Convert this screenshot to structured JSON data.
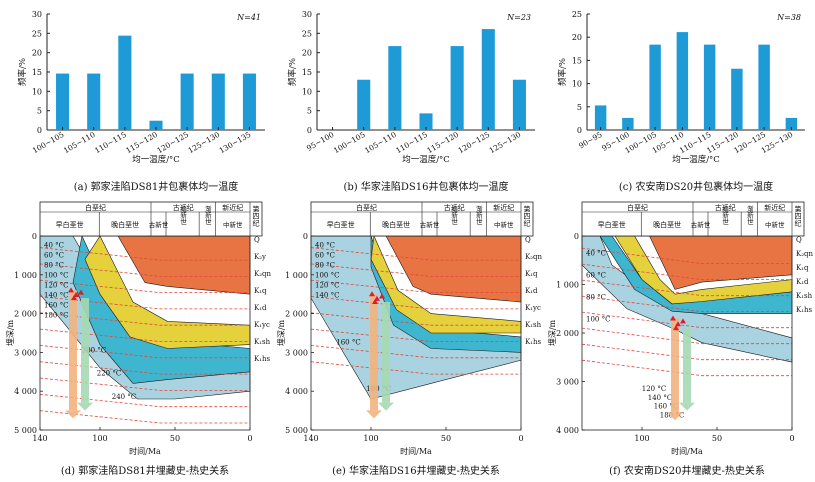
{
  "chart_data": [
    {
      "type": "bar",
      "id": "a",
      "title": "(a) 郭家洼陷DS81井包裹体均一温度",
      "xlabel": "均一温度/°C",
      "ylabel": "频率/%",
      "n_label": "N=41",
      "categories": [
        "100~105",
        "105~110",
        "110~115",
        "115~120",
        "120~125",
        "125~130",
        "130~135"
      ],
      "values": [
        14.6,
        14.6,
        24.4,
        2.4,
        14.6,
        14.6,
        14.6
      ],
      "yticks": [
        0,
        5,
        10,
        15,
        20,
        25,
        30
      ],
      "ylim": [
        0,
        30
      ],
      "color": "#1e9bd7"
    },
    {
      "type": "bar",
      "id": "b",
      "title": "(b) 华家洼陷DS16井包裹体均一温度",
      "xlabel": "均一温度/°C",
      "ylabel": "频率/%",
      "n_label": "N=23",
      "categories": [
        "95~100",
        "100~105",
        "105~110",
        "110~115",
        "115~120",
        "120~125",
        "125~130"
      ],
      "values": [
        0,
        13.0,
        21.7,
        4.3,
        21.7,
        26.1,
        13.0
      ],
      "yticks": [
        0,
        5,
        10,
        15,
        20,
        25,
        30
      ],
      "ylim": [
        0,
        30
      ],
      "color": "#1e9bd7"
    },
    {
      "type": "bar",
      "id": "c",
      "title": "(c) 农安南DS20井包裹体均一温度",
      "xlabel": "均一温度/°C",
      "ylabel": "频率/%",
      "n_label": "N=38",
      "categories": [
        "90~95",
        "95~100",
        "100~105",
        "105~110",
        "110~115",
        "115~120",
        "120~125",
        "125~130"
      ],
      "values": [
        5.3,
        2.6,
        18.4,
        21.1,
        18.4,
        13.2,
        18.4,
        2.6
      ],
      "yticks": [
        0,
        5,
        10,
        15,
        20,
        25
      ],
      "ylim": [
        0,
        25
      ],
      "color": "#1e9bd7"
    },
    {
      "type": "area",
      "id": "d",
      "title": "(d) 郭家洼陷DS81井埋藏史-热史关系",
      "xlabel": "时间/Ma",
      "ylabel": "埋深/m",
      "xticks": [
        140,
        100,
        50,
        0
      ],
      "xlim": [
        140,
        0
      ],
      "yticks": [
        "0",
        "1 000",
        "2 000",
        "3 000",
        "4 000",
        "5 000"
      ],
      "ylim": [
        0,
        5000
      ],
      "periods": [
        "白垩纪",
        "古近纪",
        "新近纪",
        "第四纪"
      ],
      "epochs": [
        "早白垩世",
        "晚白垩世",
        "古新世",
        "始新世",
        "渐新世",
        "中新世"
      ],
      "formations": [
        "Q",
        "K₂y",
        "K₂qn",
        "K₁q",
        "K₁d",
        "K₁yc",
        "K₁sh",
        "K₁hs"
      ],
      "isotherms_left": [
        "40 °C",
        "60 °C",
        "80 °C",
        "100 °C",
        "120 °C",
        "140 °C",
        "160 °C",
        "180 °C"
      ],
      "isotherms_inner": [
        "200 °C",
        "220 °C",
        "240 °C"
      ]
    },
    {
      "type": "area",
      "id": "e",
      "title": "(e) 华家洼陷DS16井埋藏史-热史关系",
      "xlabel": "时间/Ma",
      "ylabel": "埋深/m",
      "xticks": [
        140,
        100,
        50,
        0
      ],
      "xlim": [
        140,
        0
      ],
      "yticks": [
        "0",
        "1 000",
        "2 000",
        "3 000",
        "4 000",
        "5 000"
      ],
      "ylim": [
        0,
        5000
      ],
      "periods": [
        "白垩纪",
        "古近纪",
        "新近纪",
        "第四纪"
      ],
      "epochs": [
        "早白垩世",
        "晚白垩世",
        "古新世",
        "始新世",
        "渐新世",
        "中新世"
      ],
      "formations": [
        "Q",
        "K₂qn",
        "K₁q",
        "K₁d",
        "K₁yc",
        "K₁sh",
        "K₁hs"
      ],
      "isotherms_left": [
        "40 °C",
        "60 °C",
        "80 °C",
        "100 °C",
        "120 °C",
        "140 °C"
      ],
      "isotherms_inner": [
        "160 °C",
        "180 °C"
      ]
    },
    {
      "type": "area",
      "id": "f",
      "title": "(f) 农安南DS20井埋藏史-热史关系",
      "xlabel": "时间/Ma",
      "ylabel": "埋深/m",
      "xticks": [
        100,
        50,
        0
      ],
      "xlim": [
        140,
        0
      ],
      "yticks": [
        "0",
        "1 000",
        "2 000",
        "3 000",
        "4 000"
      ],
      "ylim": [
        0,
        4000
      ],
      "periods": [
        "白垩纪",
        "古近纪",
        "新近纪",
        "第四纪"
      ],
      "epochs": [
        "早白垩世",
        "晚白垩世",
        "古新世",
        "始新世",
        "渐新世",
        "中新世"
      ],
      "formations": [
        "Q",
        "K₂qn",
        "K₁q",
        "K₁d",
        "K₁sh",
        "K₁hs"
      ],
      "isotherms_left": [
        "40 °C",
        "60 °C",
        "80 °C",
        "100 °C"
      ],
      "isotherms_inner": [
        "120 °C",
        "140 °C",
        "160 °C",
        "180 °C"
      ]
    }
  ]
}
